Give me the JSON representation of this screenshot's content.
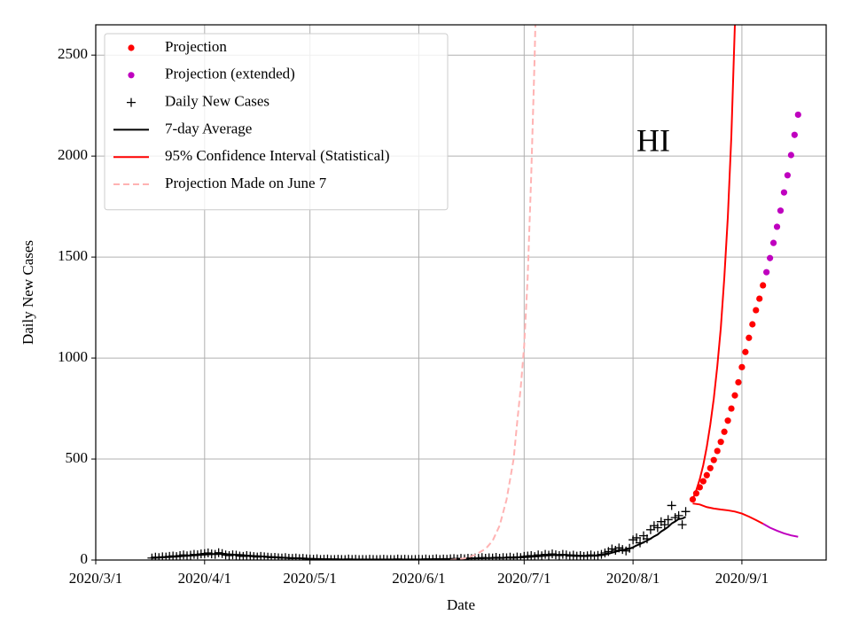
{
  "chart_data": {
    "type": "line",
    "xlabel": "Date",
    "ylabel": "Daily New Cases",
    "annotation": "HI",
    "xlim": [
      "2020/3/1",
      "2020/9/25"
    ],
    "xticks": [
      "2020/3/1",
      "2020/4/1",
      "2020/5/1",
      "2020/6/1",
      "2020/7/1",
      "2020/8/1",
      "2020/9/1"
    ],
    "ylim": [
      0,
      2650
    ],
    "yticks": [
      0,
      500,
      1000,
      1500,
      2000,
      2500
    ],
    "grid": true,
    "legend": "upper left",
    "series": [
      {
        "name": "Projection",
        "color": "#ff0000",
        "marker": "dot",
        "x": [
          "2020/8/18",
          "2020/8/19",
          "2020/8/20",
          "2020/8/21",
          "2020/8/22",
          "2020/8/23",
          "2020/8/24",
          "2020/8/25",
          "2020/8/26",
          "2020/8/27",
          "2020/8/28",
          "2020/8/29",
          "2020/8/30",
          "2020/8/31",
          "2020/9/1",
          "2020/9/2",
          "2020/9/3",
          "2020/9/4",
          "2020/9/5",
          "2020/9/6",
          "2020/9/7"
        ],
        "values": [
          300,
          330,
          360,
          390,
          420,
          455,
          495,
          540,
          585,
          635,
          690,
          750,
          815,
          880,
          955,
          1030,
          1100,
          1167,
          1237,
          1294,
          1360
        ]
      },
      {
        "name": "Projection (extended)",
        "color": "#bf00bf",
        "marker": "dot",
        "x": [
          "2020/9/8",
          "2020/9/9",
          "2020/9/10",
          "2020/9/11",
          "2020/9/12",
          "2020/9/13",
          "2020/9/14",
          "2020/9/15",
          "2020/9/16",
          "2020/9/17"
        ],
        "values": [
          1425,
          1495,
          1570,
          1650,
          1730,
          1820,
          1905,
          2005,
          2105,
          2205
        ]
      },
      {
        "name": "Daily New Cases",
        "color": "#000000",
        "marker": "plus",
        "x": [
          "2020/3/17",
          "2020/3/18",
          "2020/3/19",
          "2020/3/20",
          "2020/3/21",
          "2020/3/22",
          "2020/3/23",
          "2020/3/24",
          "2020/3/25",
          "2020/3/26",
          "2020/3/27",
          "2020/3/28",
          "2020/3/29",
          "2020/3/30",
          "2020/3/31",
          "2020/4/1",
          "2020/4/2",
          "2020/4/3",
          "2020/4/4",
          "2020/4/5",
          "2020/4/6",
          "2020/4/7",
          "2020/4/8",
          "2020/4/9",
          "2020/4/10",
          "2020/4/11",
          "2020/4/12",
          "2020/4/13",
          "2020/4/14",
          "2020/4/15",
          "2020/4/16",
          "2020/4/17",
          "2020/4/18",
          "2020/4/19",
          "2020/4/20",
          "2020/4/21",
          "2020/4/22",
          "2020/4/23",
          "2020/4/24",
          "2020/4/25",
          "2020/4/26",
          "2020/4/27",
          "2020/4/28",
          "2020/4/29",
          "2020/4/30",
          "2020/5/1",
          "2020/5/2",
          "2020/5/3",
          "2020/5/4",
          "2020/5/5",
          "2020/5/6",
          "2020/5/7",
          "2020/5/8",
          "2020/5/9",
          "2020/5/10",
          "2020/5/11",
          "2020/5/12",
          "2020/5/13",
          "2020/5/14",
          "2020/5/15",
          "2020/5/16",
          "2020/5/17",
          "2020/5/18",
          "2020/5/19",
          "2020/5/20",
          "2020/5/21",
          "2020/5/22",
          "2020/5/23",
          "2020/5/24",
          "2020/5/25",
          "2020/5/26",
          "2020/5/27",
          "2020/5/28",
          "2020/5/29",
          "2020/5/30",
          "2020/5/31",
          "2020/6/1",
          "2020/6/2",
          "2020/6/3",
          "2020/6/4",
          "2020/6/5",
          "2020/6/6",
          "2020/6/7",
          "2020/6/8",
          "2020/6/9",
          "2020/6/10",
          "2020/6/11",
          "2020/6/12",
          "2020/6/13",
          "2020/6/14",
          "2020/6/15",
          "2020/6/16",
          "2020/6/17",
          "2020/6/18",
          "2020/6/19",
          "2020/6/20",
          "2020/6/21",
          "2020/6/22",
          "2020/6/23",
          "2020/6/24",
          "2020/6/25",
          "2020/6/26",
          "2020/6/27",
          "2020/6/28",
          "2020/6/29",
          "2020/6/30",
          "2020/7/1",
          "2020/7/2",
          "2020/7/3",
          "2020/7/4",
          "2020/7/5",
          "2020/7/6",
          "2020/7/7",
          "2020/7/8",
          "2020/7/9",
          "2020/7/10",
          "2020/7/11",
          "2020/7/12",
          "2020/7/13",
          "2020/7/14",
          "2020/7/15",
          "2020/7/16",
          "2020/7/17",
          "2020/7/18",
          "2020/7/19",
          "2020/7/20",
          "2020/7/21",
          "2020/7/22",
          "2020/7/23",
          "2020/7/24",
          "2020/7/25",
          "2020/7/26",
          "2020/7/27",
          "2020/7/28",
          "2020/7/29",
          "2020/7/30",
          "2020/7/31",
          "2020/8/1",
          "2020/8/2",
          "2020/8/3",
          "2020/8/4",
          "2020/8/5",
          "2020/8/6",
          "2020/8/7",
          "2020/8/8",
          "2020/8/9",
          "2020/8/10",
          "2020/8/11",
          "2020/8/12",
          "2020/8/13",
          "2020/8/14",
          "2020/8/15",
          "2020/8/16"
        ],
        "values": [
          10,
          14,
          12,
          16,
          15,
          18,
          20,
          17,
          22,
          25,
          21,
          24,
          28,
          26,
          30,
          32,
          35,
          30,
          28,
          36,
          32,
          25,
          22,
          26,
          24,
          20,
          18,
          22,
          19,
          17,
          15,
          18,
          16,
          14,
          12,
          13,
          11,
          10,
          12,
          9,
          8,
          10,
          7,
          8,
          6,
          5,
          4,
          6,
          3,
          4,
          5,
          2,
          3,
          4,
          3,
          2,
          5,
          3,
          4,
          2,
          3,
          2,
          4,
          3,
          2,
          3,
          4,
          2,
          3,
          2,
          5,
          3,
          4,
          3,
          2,
          3,
          4,
          3,
          5,
          2,
          4,
          6,
          3,
          5,
          4,
          6,
          7,
          5,
          8,
          6,
          9,
          7,
          10,
          8,
          12,
          9,
          11,
          10,
          13,
          9,
          12,
          11,
          14,
          10,
          15,
          12,
          18,
          20,
          22,
          17,
          25,
          21,
          28,
          24,
          30,
          26,
          22,
          28,
          25,
          20,
          24,
          19,
          22,
          18,
          21,
          25,
          20,
          23,
          28,
          35,
          42,
          55,
          48,
          60,
          52,
          45,
          58,
          100,
          110,
          85,
          120,
          105,
          150,
          170,
          160,
          190,
          175,
          200,
          270,
          210,
          220,
          175,
          240
        ]
      },
      {
        "name": "7-day Average",
        "color": "#000000",
        "line": "solid",
        "x": [
          "2020/3/17",
          "2020/3/18",
          "2020/3/19",
          "2020/3/20",
          "2020/3/21",
          "2020/3/22",
          "2020/3/23",
          "2020/3/24",
          "2020/3/25",
          "2020/3/26",
          "2020/3/27",
          "2020/3/28",
          "2020/3/29",
          "2020/3/30",
          "2020/3/31",
          "2020/4/1",
          "2020/4/2",
          "2020/4/3",
          "2020/4/4",
          "2020/4/5",
          "2020/4/6",
          "2020/4/7",
          "2020/4/8",
          "2020/4/9",
          "2020/4/10",
          "2020/4/11",
          "2020/4/12",
          "2020/4/13",
          "2020/4/14",
          "2020/4/15",
          "2020/4/16",
          "2020/4/17",
          "2020/4/18",
          "2020/4/19",
          "2020/4/20",
          "2020/4/21",
          "2020/4/22",
          "2020/4/23",
          "2020/4/24",
          "2020/4/25",
          "2020/4/26",
          "2020/4/27",
          "2020/4/28",
          "2020/4/29",
          "2020/4/30",
          "2020/5/1",
          "2020/5/2",
          "2020/5/3",
          "2020/5/4",
          "2020/5/5",
          "2020/5/6",
          "2020/5/7",
          "2020/5/8",
          "2020/5/9",
          "2020/5/10",
          "2020/5/11",
          "2020/5/12",
          "2020/5/13",
          "2020/5/14",
          "2020/5/15",
          "2020/5/16",
          "2020/5/17",
          "2020/5/18",
          "2020/5/19",
          "2020/5/20",
          "2020/5/21",
          "2020/5/22",
          "2020/5/23",
          "2020/5/24",
          "2020/5/25",
          "2020/5/26",
          "2020/5/27",
          "2020/5/28",
          "2020/5/29",
          "2020/5/30",
          "2020/5/31",
          "2020/6/1",
          "2020/6/2",
          "2020/6/3",
          "2020/6/4",
          "2020/6/5",
          "2020/6/6",
          "2020/6/7",
          "2020/6/8",
          "2020/6/9",
          "2020/6/10",
          "2020/6/11",
          "2020/6/12",
          "2020/6/13",
          "2020/6/14",
          "2020/6/15",
          "2020/6/16",
          "2020/6/17",
          "2020/6/18",
          "2020/6/19",
          "2020/6/20",
          "2020/6/21",
          "2020/6/22",
          "2020/6/23",
          "2020/6/24",
          "2020/6/25",
          "2020/6/26",
          "2020/6/27",
          "2020/6/28",
          "2020/6/29",
          "2020/6/30",
          "2020/7/1",
          "2020/7/2",
          "2020/7/3",
          "2020/7/4",
          "2020/7/5",
          "2020/7/6",
          "2020/7/7",
          "2020/7/8",
          "2020/7/9",
          "2020/7/10",
          "2020/7/11",
          "2020/7/12",
          "2020/7/13",
          "2020/7/14",
          "2020/7/15",
          "2020/7/16",
          "2020/7/17",
          "2020/7/18",
          "2020/7/19",
          "2020/7/20",
          "2020/7/21",
          "2020/7/22",
          "2020/7/23",
          "2020/7/24",
          "2020/7/25",
          "2020/7/26",
          "2020/7/27",
          "2020/7/28",
          "2020/7/29",
          "2020/7/30",
          "2020/7/31",
          "2020/8/1",
          "2020/8/2",
          "2020/8/3",
          "2020/8/4",
          "2020/8/5",
          "2020/8/6",
          "2020/8/7",
          "2020/8/8",
          "2020/8/9",
          "2020/8/10",
          "2020/8/11",
          "2020/8/12",
          "2020/8/13",
          "2020/8/14",
          "2020/8/15",
          "2020/8/16"
        ],
        "values": [
          10,
          11,
          12,
          13,
          14,
          15,
          16,
          17,
          18,
          20,
          21,
          22,
          23,
          24,
          26,
          27,
          28,
          29,
          30,
          30,
          30,
          29,
          28,
          27,
          26,
          25,
          24,
          22,
          21,
          20,
          19,
          18,
          17,
          16,
          15,
          14,
          13,
          12,
          11,
          10,
          10,
          9,
          9,
          8,
          7,
          6,
          6,
          5,
          5,
          4,
          4,
          4,
          4,
          4,
          3,
          3,
          3,
          3,
          3,
          3,
          3,
          3,
          3,
          3,
          3,
          3,
          3,
          3,
          3,
          3,
          3,
          3,
          3,
          3,
          3,
          3,
          3,
          3,
          4,
          4,
          4,
          4,
          4,
          5,
          5,
          5,
          6,
          6,
          6,
          7,
          7,
          8,
          8,
          9,
          9,
          10,
          10,
          10,
          11,
          11,
          11,
          12,
          12,
          12,
          13,
          13,
          14,
          15,
          16,
          18,
          19,
          20,
          22,
          23,
          24,
          25,
          25,
          25,
          25,
          24,
          23,
          22,
          21,
          21,
          21,
          21,
          22,
          23,
          24,
          27,
          31,
          36,
          41,
          46,
          50,
          52,
          56,
          63,
          72,
          79,
          88,
          96,
          106,
          117,
          126,
          141,
          152,
          164,
          181,
          191,
          203,
          205,
          214
        ]
      },
      {
        "name": "95% Confidence Interval (Statistical)",
        "color": "#ff0000",
        "line": "solid",
        "x": [
          "2020/8/18",
          "2020/8/19",
          "2020/8/20",
          "2020/8/21",
          "2020/8/22",
          "2020/8/23",
          "2020/8/24",
          "2020/8/25",
          "2020/8/26",
          "2020/8/27",
          "2020/8/28",
          "2020/8/29",
          "2020/8/30",
          "2020/8/31"
        ],
        "values": [
          300,
          345,
          400,
          470,
          560,
          670,
          800,
          960,
          1150,
          1400,
          1700,
          2100,
          2650,
          3300
        ]
      },
      {
        "color": "#ff0000",
        "line": "solid",
        "x": [
          "2020/8/18",
          "2020/8/20",
          "2020/8/22",
          "2020/8/24",
          "2020/8/26",
          "2020/8/28",
          "2020/8/30",
          "2020/9/1",
          "2020/9/3",
          "2020/9/5",
          "2020/9/7"
        ],
        "values": [
          280,
          275,
          262,
          255,
          250,
          246,
          240,
          230,
          215,
          198,
          180
        ]
      },
      {
        "color": "#bf00bf",
        "line": "solid",
        "x": [
          "2020/9/7",
          "2020/9/9",
          "2020/9/11",
          "2020/9/13",
          "2020/9/15",
          "2020/9/17"
        ],
        "values": [
          180,
          160,
          145,
          132,
          122,
          115
        ]
      },
      {
        "name": "Projection Made on June 7",
        "color": "#ffb3b3",
        "line": "dashed",
        "x": [
          "2020/6/10",
          "2020/6/14",
          "2020/6/17",
          "2020/6/20",
          "2020/6/22",
          "2020/6/24",
          "2020/6/26",
          "2020/6/28",
          "2020/6/29",
          "2020/6/30",
          "2020/7/1",
          "2020/7/2",
          "2020/7/3",
          "2020/7/4",
          "2020/7/5"
        ],
        "values": [
          0,
          8,
          25,
          55,
          95,
          170,
          300,
          500,
          680,
          850,
          1060,
          1400,
          1900,
          2500,
          3300
        ]
      }
    ]
  }
}
